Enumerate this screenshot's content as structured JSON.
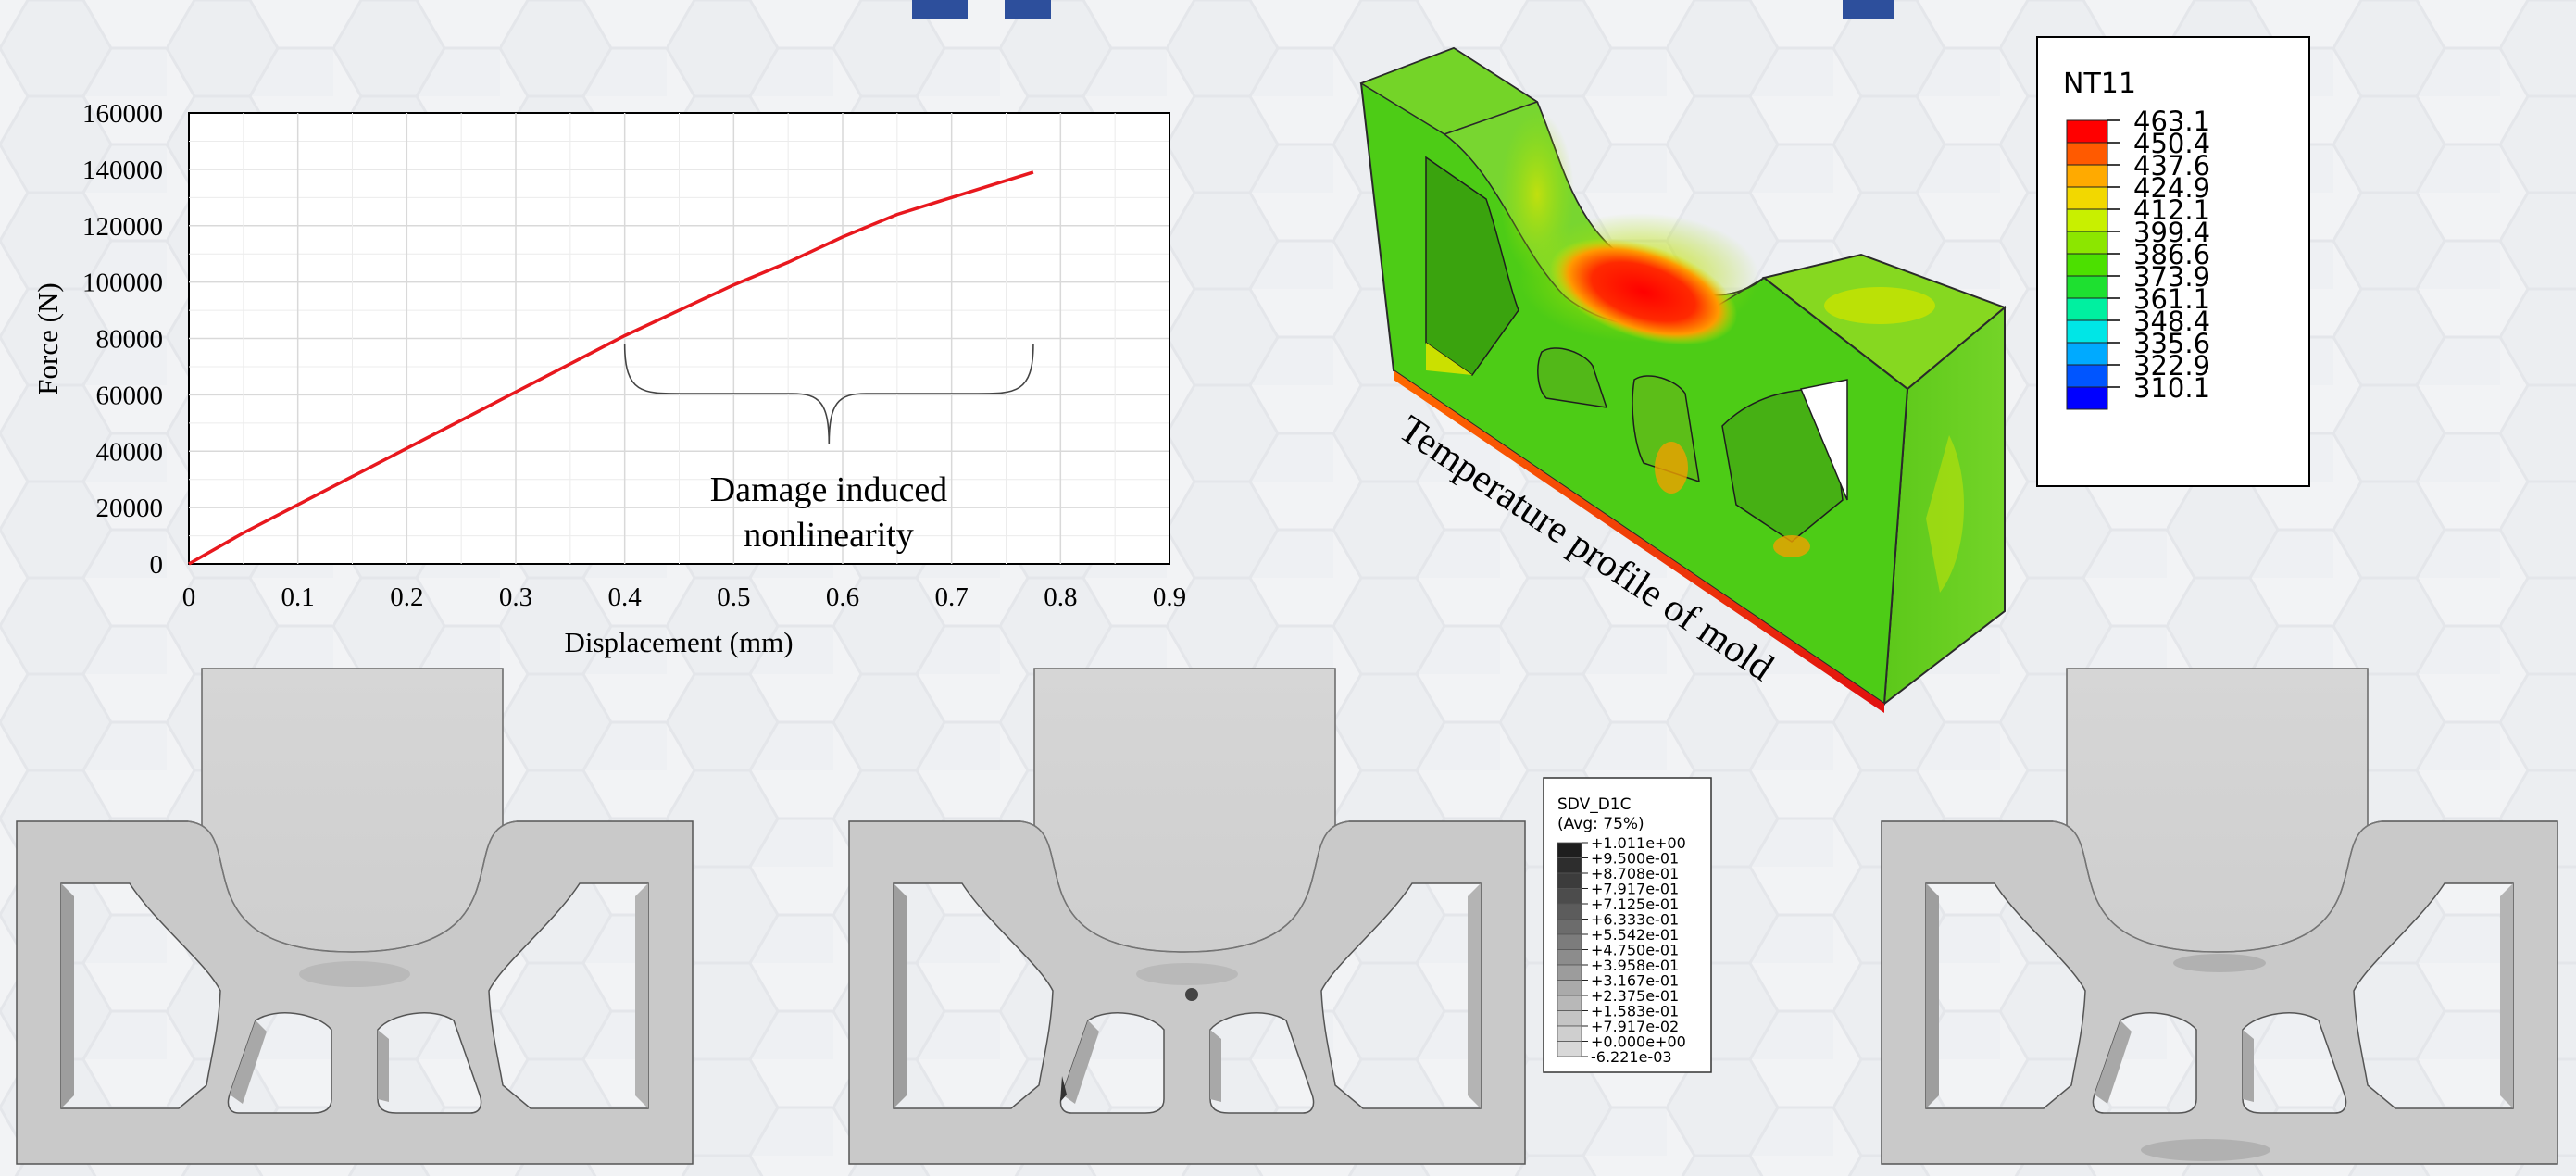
{
  "chart_data": {
    "type": "line",
    "xlabel": "Displacement (mm)",
    "ylabel": "Force (N)",
    "xlim": [
      0,
      0.9
    ],
    "ylim": [
      0,
      160000
    ],
    "x_ticks": [
      "0",
      "0.1",
      "0.2",
      "0.3",
      "0.4",
      "0.5",
      "0.6",
      "0.7",
      "0.8",
      "0.9"
    ],
    "y_ticks": [
      "0",
      "20000",
      "40000",
      "60000",
      "80000",
      "100000",
      "120000",
      "140000",
      "160000"
    ],
    "grid": true,
    "series": [
      {
        "color": "#e8181e",
        "x": [
          0,
          0.05,
          0.1,
          0.15,
          0.2,
          0.25,
          0.3,
          0.35,
          0.4,
          0.45,
          0.5,
          0.55,
          0.6,
          0.65,
          0.7,
          0.75,
          0.775
        ],
        "y": [
          0,
          11000,
          21000,
          31000,
          41000,
          51000,
          61000,
          71000,
          81000,
          90000,
          99000,
          107000,
          116000,
          124000,
          130000,
          136000,
          139000
        ]
      }
    ],
    "annotation": {
      "line1": "Damage induced",
      "line2": "nonlinearity",
      "brace_x_range": [
        0.4,
        0.775
      ]
    }
  },
  "mold": {
    "caption": "Temperature profile of mold",
    "legend": {
      "title": "NT11",
      "values": [
        "463.1",
        "450.4",
        "437.6",
        "424.9",
        "412.1",
        "399.4",
        "386.6",
        "373.9",
        "361.1",
        "348.4",
        "335.6",
        "322.9",
        "310.1"
      ],
      "colors": [
        "#ff0000",
        "#ff5a00",
        "#ffaa00",
        "#f2d800",
        "#c8f000",
        "#8ce600",
        "#4ce000",
        "#1ee030",
        "#00f0a0",
        "#00e6e6",
        "#00aaff",
        "#0055ff",
        "#0000ff"
      ]
    }
  },
  "damage_legend": {
    "title": "SDV_D1C",
    "subtitle": "(Avg: 75%)",
    "values": [
      "+1.011e+00",
      "+9.500e-01",
      "+8.708e-01",
      "+7.917e-01",
      "+7.125e-01",
      "+6.333e-01",
      "+5.542e-01",
      "+4.750e-01",
      "+3.958e-01",
      "+3.167e-01",
      "+2.375e-01",
      "+1.583e-01",
      "+7.917e-02",
      "+0.000e+00",
      "-6.221e-03"
    ],
    "colors": [
      "#1e1e1e",
      "#2d2d2d",
      "#3c3c3c",
      "#4c4c4c",
      "#5c5c5c",
      "#6c6c6c",
      "#7c7c7c",
      "#8c8c8c",
      "#9c9c9c",
      "#aaaaaa",
      "#b8b8b8",
      "#c4c4c4",
      "#cfcfcf",
      "#d8d8d8"
    ]
  }
}
